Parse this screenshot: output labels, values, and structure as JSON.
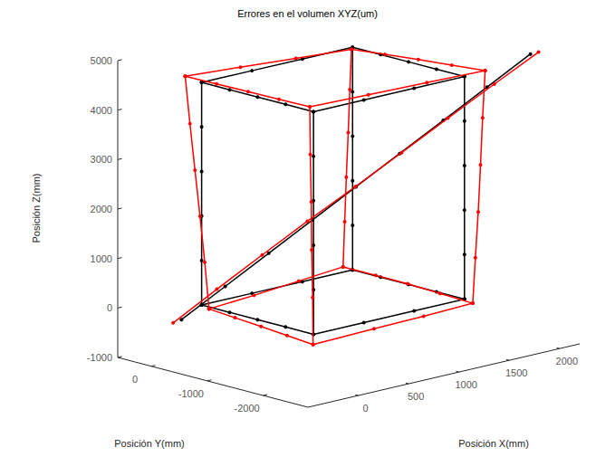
{
  "chart_data": {
    "type": "line3d",
    "title": "Errores en el volumen XYZ(um)",
    "x_label": "Posición X(mm)",
    "y_label": "Posición Y(mm)",
    "z_label": "Posición Z(mm)",
    "xlim": [
      -500,
      2200
    ],
    "ylim": [
      -2800,
      600
    ],
    "zlim": [
      -1000,
      5000
    ],
    "xticks": [
      0,
      500,
      1000,
      1500,
      2000
    ],
    "yticks": [
      -2000,
      -1000,
      0
    ],
    "zticks": [
      -1000,
      0,
      1000,
      2000,
      3000,
      4000,
      5000
    ],
    "series": [
      {
        "color": "#000000",
        "marker": "o",
        "line_style": "solid",
        "paths": [
          [
            [
              0,
              0,
              0
            ],
            [
              500,
              0,
              0
            ],
            [
              1000,
              0,
              0
            ],
            [
              1500,
              0,
              0
            ],
            [
              1500,
              -500,
              0
            ],
            [
              1500,
              -1000,
              0
            ],
            [
              1500,
              -1500,
              0
            ],
            [
              1500,
              -2000,
              0
            ],
            [
              1000,
              -2000,
              0
            ],
            [
              500,
              -2000,
              0
            ],
            [
              0,
              -2000,
              0
            ],
            [
              0,
              -1500,
              0
            ],
            [
              0,
              -1000,
              0
            ],
            [
              0,
              -500,
              0
            ],
            [
              0,
              0,
              0
            ]
          ],
          [
            [
              0,
              0,
              4500
            ],
            [
              500,
              0,
              4500
            ],
            [
              1000,
              0,
              4500
            ],
            [
              1500,
              0,
              4500
            ],
            [
              1500,
              -500,
              4500
            ],
            [
              1500,
              -1000,
              4500
            ],
            [
              1500,
              -1500,
              4500
            ],
            [
              1500,
              -2000,
              4500
            ],
            [
              1000,
              -2000,
              4500
            ],
            [
              500,
              -2000,
              4500
            ],
            [
              0,
              -2000,
              4500
            ],
            [
              0,
              -1500,
              4500
            ],
            [
              0,
              -1000,
              4500
            ],
            [
              0,
              -500,
              4500
            ],
            [
              0,
              0,
              4500
            ]
          ],
          [
            [
              0,
              0,
              0
            ],
            [
              0,
              0,
              900
            ],
            [
              0,
              0,
              1800
            ],
            [
              0,
              0,
              2700
            ],
            [
              0,
              0,
              3600
            ],
            [
              0,
              0,
              4500
            ]
          ],
          [
            [
              1500,
              0,
              0
            ],
            [
              1500,
              0,
              900
            ],
            [
              1500,
              0,
              1800
            ],
            [
              1500,
              0,
              2700
            ],
            [
              1500,
              0,
              3600
            ],
            [
              1500,
              0,
              4500
            ]
          ],
          [
            [
              1500,
              -2000,
              0
            ],
            [
              1500,
              -2000,
              900
            ],
            [
              1500,
              -2000,
              1800
            ],
            [
              1500,
              -2000,
              2700
            ],
            [
              1500,
              -2000,
              3600
            ],
            [
              1500,
              -2000,
              4500
            ]
          ],
          [
            [
              0,
              -2000,
              0
            ],
            [
              0,
              -2000,
              900
            ],
            [
              0,
              -2000,
              1800
            ],
            [
              0,
              -2000,
              2700
            ],
            [
              0,
              -2000,
              3600
            ],
            [
              0,
              -2000,
              4500
            ]
          ],
          [
            [
              -200,
              0,
              -200
            ],
            [
              88,
              -263,
              413
            ],
            [
              375,
              -525,
              1025
            ],
            [
              663,
              -788,
              1638
            ],
            [
              950,
              -1050,
              2250
            ],
            [
              1238,
              -1313,
              2863
            ],
            [
              1525,
              -1575,
              3475
            ],
            [
              1813,
              -1838,
              4088
            ],
            [
              2100,
              -2100,
              4700
            ]
          ]
        ]
      },
      {
        "color": "#ff0000",
        "marker": "o",
        "line_style": "solid",
        "paths": [
          [
            [
              40,
              -60,
              -80
            ],
            [
              510,
              -20,
              -40
            ],
            [
              980,
              30,
              10
            ],
            [
              1450,
              80,
              60
            ],
            [
              1480,
              -450,
              30
            ],
            [
              1510,
              -960,
              0
            ],
            [
              1535,
              -1500,
              -50
            ],
            [
              1560,
              -2040,
              -100
            ],
            [
              1060,
              -2060,
              -120
            ],
            [
              560,
              -2075,
              -130
            ],
            [
              -60,
              -2100,
              -150
            ],
            [
              -35,
              -1590,
              -130
            ],
            [
              -10,
              -1080,
              -110
            ],
            [
              15,
              -570,
              -95
            ],
            [
              40,
              -60,
              -80
            ]
          ],
          [
            [
              -80,
              150,
              4620
            ],
            [
              480,
              170,
              4530
            ],
            [
              1040,
              185,
              4440
            ],
            [
              1600,
              200,
              4350
            ],
            [
              1615,
              -370,
              4410
            ],
            [
              1630,
              -940,
              4470
            ],
            [
              1640,
              -1520,
              4520
            ],
            [
              1650,
              -2100,
              4580
            ],
            [
              1060,
              -2120,
              4620
            ],
            [
              470,
              -2135,
              4660
            ],
            [
              -120,
              -2150,
              4700
            ],
            [
              -110,
              -1580,
              4680
            ],
            [
              -100,
              -1010,
              4660
            ],
            [
              -90,
              -430,
              4640
            ],
            [
              -80,
              150,
              4620
            ]
          ],
          [
            [
              40,
              -60,
              -80
            ],
            [
              20,
              -20,
              860
            ],
            [
              -5,
              20,
              1790
            ],
            [
              -30,
              65,
              2720
            ],
            [
              -55,
              110,
              3660
            ],
            [
              -80,
              150,
              4620
            ]
          ],
          [
            [
              1450,
              80,
              60
            ],
            [
              1480,
              105,
              950
            ],
            [
              1510,
              130,
              1830
            ],
            [
              1540,
              150,
              2710
            ],
            [
              1570,
              175,
              3560
            ],
            [
              1600,
              200,
              4350
            ]
          ],
          [
            [
              1560,
              -2040,
              -100
            ],
            [
              1575,
              -2060,
              820
            ],
            [
              1595,
              -2075,
              1740
            ],
            [
              1615,
              -2080,
              2680
            ],
            [
              1630,
              -2090,
              3630
            ],
            [
              1650,
              -2100,
              4580
            ]
          ],
          [
            [
              -60,
              -2100,
              -150
            ],
            [
              -70,
              -2110,
              810
            ],
            [
              -85,
              -2120,
              1780
            ],
            [
              -95,
              -2130,
              2760
            ],
            [
              -110,
              -2140,
              3730
            ],
            [
              -120,
              -2150,
              4700
            ]
          ],
          [
            [
              -250,
              60,
              -260
            ],
            [
              40,
              -200,
              360
            ],
            [
              340,
              -470,
              990
            ],
            [
              640,
              -740,
              1610
            ],
            [
              960,
              -1020,
              2240
            ],
            [
              1270,
              -1290,
              2860
            ],
            [
              1580,
              -1560,
              3490
            ],
            [
              1890,
              -1830,
              4110
            ],
            [
              2180,
              -2100,
              4700
            ]
          ]
        ]
      }
    ]
  }
}
